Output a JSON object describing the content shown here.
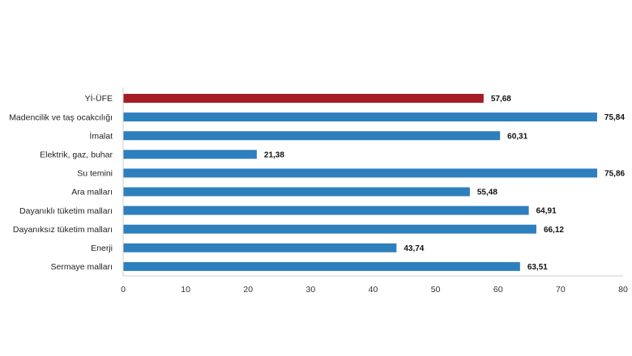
{
  "chart_data": {
    "type": "bar",
    "orientation": "horizontal",
    "categories": [
      "Yİ-ÜFE",
      "Madencilik ve taş ocakcılığı",
      "İmalat",
      "Elektrik, gaz, buhar",
      "Su temini",
      "Ara malları",
      "Dayanıklı tüketim malları",
      "Dayanıksız tüketim malları",
      "Enerji",
      "Sermaye malları"
    ],
    "values": [
      57.68,
      75.84,
      60.31,
      21.38,
      75.86,
      55.48,
      64.91,
      66.12,
      43.74,
      63.51
    ],
    "value_labels": [
      "57,68",
      "75,84",
      "60,31",
      "21,38",
      "75,86",
      "55,48",
      "64,91",
      "66,12",
      "43,74",
      "63,51"
    ],
    "xlim": [
      0,
      80
    ],
    "xticks": [
      "0",
      "10",
      "20",
      "30",
      "40",
      "50",
      "60",
      "70",
      "80"
    ],
    "grid": false,
    "title": "",
    "xlabel": "",
    "ylabel": "",
    "colors": {
      "highlight": "#a51c24",
      "default": "#2e7fbd"
    },
    "highlight_index": 0
  }
}
